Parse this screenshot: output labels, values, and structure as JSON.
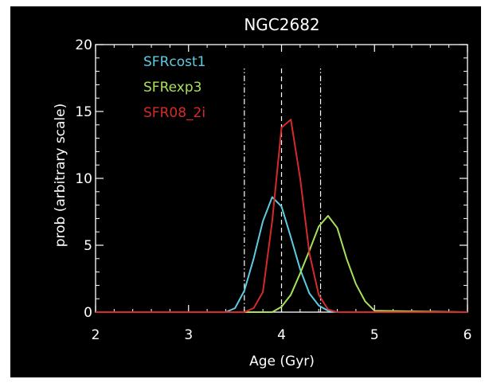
{
  "chart_data": {
    "type": "line",
    "title": "NGC2682",
    "xlabel": "Age (Gyr)",
    "ylabel": "prob (arbitrary scale)",
    "xlim": [
      2,
      6
    ],
    "ylim": [
      0,
      20
    ],
    "xticks": [
      2,
      3,
      4,
      5,
      6
    ],
    "yticks": [
      0,
      5,
      10,
      15,
      20
    ],
    "background": "#000000",
    "axis_color": "#ffffff",
    "legend_position": "top-left",
    "series": [
      {
        "name": "SFRcost1",
        "color": "#5ecbe0",
        "x": [
          2.0,
          3.4,
          3.5,
          3.6,
          3.7,
          3.8,
          3.9,
          4.0,
          4.1,
          4.2,
          4.3,
          4.4,
          4.5,
          4.6,
          6.0
        ],
        "y": [
          0,
          0,
          0.3,
          1.6,
          4.0,
          6.8,
          8.6,
          7.9,
          5.6,
          3.2,
          1.4,
          0.5,
          0.1,
          0,
          0
        ]
      },
      {
        "name": "SFRexp3",
        "color": "#a8e05a",
        "x": [
          2.0,
          3.9,
          4.0,
          4.1,
          4.2,
          4.3,
          4.4,
          4.5,
          4.6,
          4.7,
          4.8,
          4.9,
          5.0,
          6.0
        ],
        "y": [
          0,
          0,
          0.4,
          1.3,
          2.9,
          4.6,
          6.4,
          7.2,
          6.3,
          4.0,
          2.1,
          0.8,
          0.1,
          0
        ]
      },
      {
        "name": "SFR08_2i",
        "color": "#d62a2a",
        "x": [
          2.0,
          3.6,
          3.7,
          3.8,
          3.9,
          4.0,
          4.1,
          4.2,
          4.3,
          4.4,
          4.5,
          4.6,
          6.0
        ],
        "y": [
          0,
          0,
          0.3,
          1.5,
          6.8,
          13.8,
          14.4,
          10.0,
          4.4,
          1.3,
          0.2,
          0,
          0
        ]
      }
    ],
    "vlines": [
      {
        "x": 3.6,
        "style": "dashdot"
      },
      {
        "x": 4.0,
        "style": "dashed"
      },
      {
        "x": 4.42,
        "style": "dashdot"
      }
    ]
  }
}
